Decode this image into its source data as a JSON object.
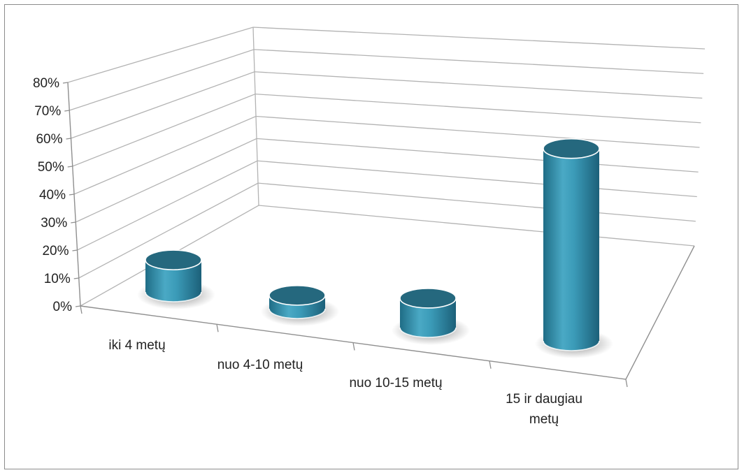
{
  "chart_data": {
    "type": "bar",
    "style": "3d-cylinder",
    "categories": [
      "iki 4 metų",
      "nuo 4-10 metų",
      "nuo 10-15 metų",
      "15 ir daugiau metų"
    ],
    "category_lines": [
      [
        "iki 4 metų"
      ],
      [
        "nuo 4-10 metų"
      ],
      [
        "nuo 10-15 metų"
      ],
      [
        "15 ir daugiau",
        "metų"
      ]
    ],
    "values": [
      0.12,
      0.05,
      0.11,
      0.72
    ],
    "ylim": [
      0,
      0.8
    ],
    "y_ticks": [
      {
        "value": 0.0,
        "label": "0%"
      },
      {
        "value": 0.1,
        "label": "10%"
      },
      {
        "value": 0.2,
        "label": "20%"
      },
      {
        "value": 0.3,
        "label": "30%"
      },
      {
        "value": 0.4,
        "label": "40%"
      },
      {
        "value": 0.5,
        "label": "50%"
      },
      {
        "value": 0.6,
        "label": "60%"
      },
      {
        "value": 0.7,
        "label": "70%"
      },
      {
        "value": 0.8,
        "label": "80%"
      }
    ],
    "grid": true,
    "legend": "none",
    "title": "",
    "xlabel": "",
    "ylabel": "",
    "colors": {
      "bar_side": "#2f8aa6",
      "bar_highlight": "#5db8d2",
      "bar_top": "#25687e",
      "gridline": "#b3b3b3",
      "axis": "#8f8f8f"
    }
  }
}
